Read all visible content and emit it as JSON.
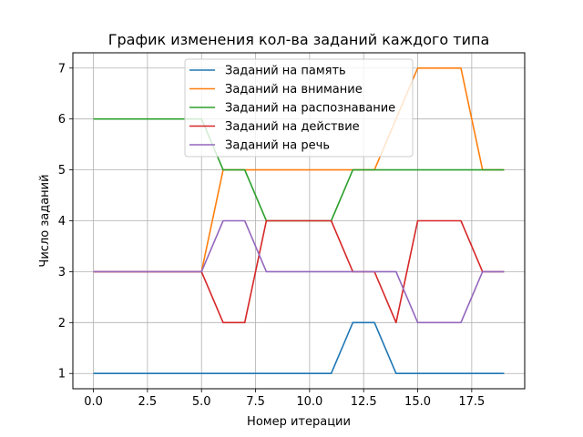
{
  "chart_data": {
    "type": "line",
    "title": "График изменения кол-ва заданий каждого типа",
    "xlabel": "Номер итерации",
    "ylabel": "Число заданий",
    "xlim": [
      -0.95,
      19.95
    ],
    "ylim": [
      0.7,
      7.3
    ],
    "xticks": [
      0.0,
      2.5,
      5.0,
      7.5,
      10.0,
      12.5,
      15.0,
      17.5
    ],
    "xtick_labels": [
      "0.0",
      "2.5",
      "5.0",
      "7.5",
      "10.0",
      "12.5",
      "15.0",
      "17.5"
    ],
    "yticks": [
      1,
      2,
      3,
      4,
      5,
      6,
      7
    ],
    "ytick_labels": [
      "1",
      "2",
      "3",
      "4",
      "5",
      "6",
      "7"
    ],
    "grid": true,
    "legend_position": "top-center",
    "x": [
      0,
      1,
      2,
      3,
      4,
      5,
      6,
      7,
      8,
      9,
      10,
      11,
      12,
      13,
      14,
      15,
      16,
      17,
      18,
      19
    ],
    "series": [
      {
        "name": "Заданий на память",
        "color": "#1f77b4",
        "values": [
          1,
          1,
          1,
          1,
          1,
          1,
          1,
          1,
          1,
          1,
          1,
          1,
          2,
          2,
          1,
          1,
          1,
          1,
          1,
          1
        ]
      },
      {
        "name": "Заданий на внимание",
        "color": "#ff7f0e",
        "values": [
          3,
          3,
          3,
          3,
          3,
          3,
          5,
          5,
          5,
          5,
          5,
          5,
          5,
          5,
          6,
          7,
          7,
          7,
          5,
          5
        ]
      },
      {
        "name": "Заданий на распознавание",
        "color": "#2ca02c",
        "values": [
          6,
          6,
          6,
          6,
          6,
          6,
          5,
          5,
          4,
          4,
          4,
          4,
          5,
          5,
          5,
          5,
          5,
          5,
          5,
          5
        ]
      },
      {
        "name": "Заданий на действие",
        "color": "#d62728",
        "values": [
          3,
          3,
          3,
          3,
          3,
          3,
          2,
          2,
          4,
          4,
          4,
          4,
          3,
          3,
          2,
          4,
          4,
          4,
          3,
          3
        ]
      },
      {
        "name": "Заданий на речь",
        "color": "#9467bd",
        "values": [
          3,
          3,
          3,
          3,
          3,
          3,
          4,
          4,
          3,
          3,
          3,
          3,
          3,
          3,
          3,
          2,
          2,
          2,
          3,
          3
        ]
      }
    ]
  }
}
